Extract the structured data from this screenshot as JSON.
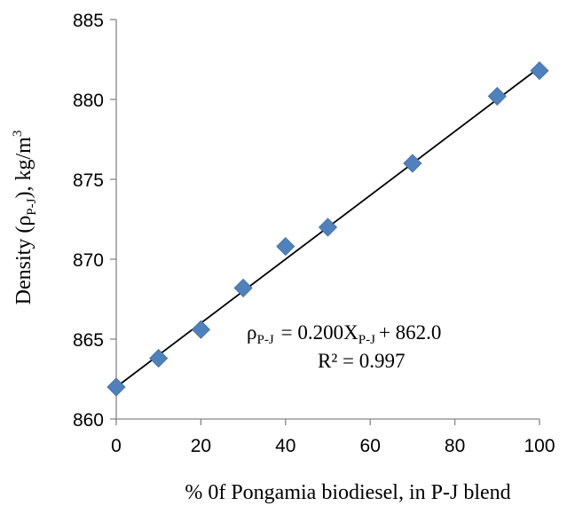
{
  "chart_data": {
    "type": "scatter",
    "title": "",
    "xlabel": "% 0f Pongamia biodiesel, in P-J blend",
    "ylabel": {
      "prefix": "Density (ρ",
      "sub": "P-J",
      "middle": "), kg/m",
      "sup": "3"
    },
    "xlim": [
      0,
      100
    ],
    "ylim": [
      860,
      885
    ],
    "xticks": [
      0,
      20,
      40,
      60,
      80,
      100
    ],
    "yticks": [
      860,
      865,
      870,
      875,
      880,
      885
    ],
    "grid": false,
    "series": [
      {
        "marker": "diamond",
        "color": "#4f81bd",
        "x": [
          0,
          10,
          20,
          30,
          40,
          50,
          70,
          90,
          100
        ],
        "y": [
          862.0,
          863.8,
          865.6,
          868.2,
          870.8,
          872.0,
          876.0,
          880.2,
          881.8
        ]
      }
    ],
    "trendline": {
      "slope": 0.2,
      "intercept": 862.0,
      "color": "#000000"
    },
    "annotation": {
      "rho": "ρ",
      "rho_sub": "P-J",
      "eq_mid": "= 0.200X",
      "x_sub": "P-J",
      "eq_end": "+ 862.0",
      "r2": "R² = 0.997"
    }
  }
}
